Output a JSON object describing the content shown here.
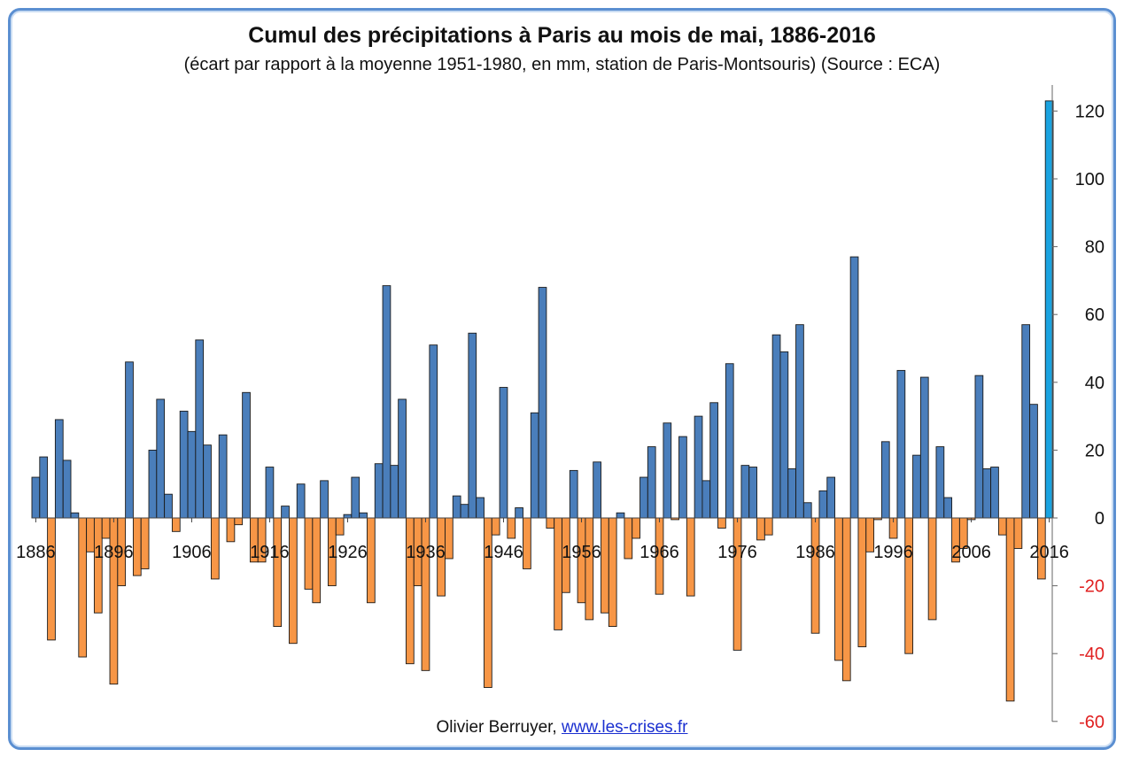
{
  "title": "Cumul des précipitations à Paris au mois de mai, 1886-2016",
  "subtitle": "(écart par rapport à la moyenne 1951-1980,  en mm, station de Paris-Montsouris) (Source : ECA)",
  "credit": {
    "author": "Olivier Berruyer,",
    "link": "www.les-crises.fr"
  },
  "colors": {
    "positive": "#4a7ebb",
    "negative": "#f79646",
    "highlight": "#1aa3e0",
    "positive_axis": "#111111",
    "negative_axis": "#e02020"
  },
  "chart_data": {
    "type": "bar",
    "title": "Cumul des précipitations à Paris au mois de mai, 1886-2016",
    "subtitle": "(écart par rapport à la moyenne 1951-1980,  en mm, station de Paris-Montsouris) (Source : ECA)",
    "xlabel": "",
    "ylabel": "",
    "ylim": [
      -60,
      125
    ],
    "yticks": [
      120,
      100,
      80,
      60,
      40,
      20,
      0,
      -20,
      -40,
      -60
    ],
    "xticks": [
      "1886",
      "1896",
      "1906",
      "1916",
      "1926",
      "1936",
      "1946",
      "1956",
      "1966",
      "1976",
      "1986",
      "1996",
      "2006",
      "2016"
    ],
    "y_axis_position": "right",
    "highlight_year": 2016,
    "years_start": 1886,
    "values": [
      12,
      18,
      -36,
      29,
      17,
      1.5,
      -41,
      -10,
      -28,
      -6,
      -49,
      -20,
      46,
      -17,
      -15,
      20,
      35,
      7,
      -4,
      31.5,
      25.5,
      52.5,
      21.5,
      -18,
      24.5,
      -7,
      -2,
      37,
      -13,
      -13,
      15,
      -32,
      3.5,
      -37,
      10,
      -21,
      -25,
      11,
      -20,
      -5,
      1,
      12,
      1.5,
      -25,
      16,
      68.5,
      15.5,
      35,
      -43,
      -20,
      -45,
      51,
      -23,
      -12,
      6.5,
      4,
      54.5,
      6,
      -50,
      -5,
      38.5,
      -6,
      3,
      -15,
      31,
      68,
      -3,
      -33,
      -22,
      14,
      -25,
      -30,
      16.5,
      -28,
      -32,
      1.5,
      -12,
      -6,
      12,
      21,
      -22.5,
      28,
      -0.5,
      24,
      -23,
      30,
      11,
      34,
      -3,
      45.5,
      -39,
      15.5,
      15,
      -6.5,
      -5,
      54,
      49,
      14.5,
      57,
      4.5,
      -34,
      8,
      12,
      -42,
      -48,
      77,
      -38,
      -10,
      -0.5,
      22.5,
      -6,
      43.5,
      -40,
      18.5,
      41.5,
      -30,
      21,
      6,
      -13,
      -9,
      -0.5,
      42,
      14.5,
      15,
      -5,
      -54,
      -9,
      57,
      33.5,
      -18,
      123
    ]
  }
}
